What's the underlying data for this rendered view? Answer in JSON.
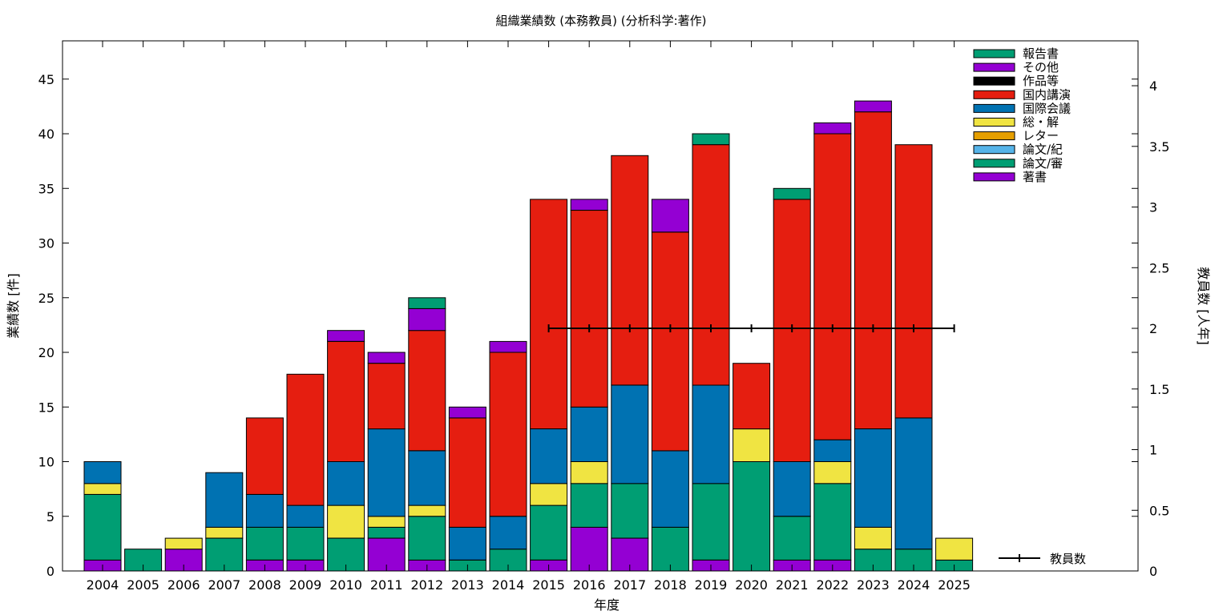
{
  "chart_data": {
    "type": "bar",
    "stacked": true,
    "title": "組織業績数 (本務教員) (分析科学:著作)",
    "xlabel": "年度",
    "ylabel": "業績数 [件]",
    "y2label": "教員数 [人年]",
    "ylim": [
      0,
      48.5
    ],
    "y2lim": [
      0,
      4.37
    ],
    "yticks": [
      0,
      5,
      10,
      15,
      20,
      25,
      30,
      35,
      40,
      45
    ],
    "y2ticks": [
      "0",
      "0.5",
      "1",
      "1.5",
      "2",
      "2.5",
      "3",
      "3.5",
      "4"
    ],
    "legend_position": "top-right",
    "categories": [
      "2004",
      "2005",
      "2006",
      "2007",
      "2008",
      "2009",
      "2010",
      "2011",
      "2012",
      "2013",
      "2014",
      "2015",
      "2016",
      "2017",
      "2018",
      "2019",
      "2020",
      "2021",
      "2022",
      "2023",
      "2024",
      "2025"
    ],
    "series": [
      {
        "name": "著書",
        "color": "#9400d3",
        "values": [
          1,
          0,
          2,
          0,
          1,
          1,
          0,
          3,
          1,
          0,
          0,
          1,
          4,
          3,
          0,
          1,
          0,
          1,
          1,
          0,
          0,
          0
        ]
      },
      {
        "name": "論文/審",
        "color": "#009e73",
        "values": [
          6,
          2,
          0,
          3,
          3,
          3,
          3,
          1,
          4,
          1,
          2,
          5,
          4,
          5,
          4,
          7,
          10,
          4,
          7,
          2,
          2,
          1
        ]
      },
      {
        "name": "論文/紀",
        "color": "#56b4e9",
        "values": [
          0,
          0,
          0,
          0,
          0,
          0,
          0,
          0,
          0,
          0,
          0,
          0,
          0,
          0,
          0,
          0,
          0,
          0,
          0,
          0,
          0,
          0
        ]
      },
      {
        "name": "レター",
        "color": "#e69f00",
        "values": [
          0,
          0,
          0,
          0,
          0,
          0,
          0,
          0,
          0,
          0,
          0,
          0,
          0,
          0,
          0,
          0,
          0,
          0,
          0,
          0,
          0,
          0
        ]
      },
      {
        "name": "総・解",
        "color": "#f0e442",
        "values": [
          1,
          0,
          1,
          1,
          0,
          0,
          3,
          1,
          1,
          0,
          0,
          2,
          2,
          0,
          0,
          0,
          3,
          0,
          2,
          2,
          0,
          2
        ]
      },
      {
        "name": "国際会議",
        "color": "#0072b2",
        "values": [
          2,
          0,
          0,
          5,
          3,
          2,
          4,
          8,
          5,
          3,
          3,
          5,
          5,
          9,
          7,
          9,
          0,
          5,
          2,
          9,
          12,
          0
        ]
      },
      {
        "name": "国内講演",
        "color": "#e51e10",
        "values": [
          0,
          0,
          0,
          0,
          7,
          12,
          11,
          6,
          11,
          10,
          15,
          21,
          18,
          21,
          20,
          22,
          6,
          24,
          28,
          29,
          25,
          0
        ]
      },
      {
        "name": "作品等",
        "color": "#000000",
        "values": [
          0,
          0,
          0,
          0,
          0,
          0,
          0,
          0,
          0,
          0,
          0,
          0,
          0,
          0,
          0,
          0,
          0,
          0,
          0,
          0,
          0,
          0
        ]
      },
      {
        "name": "その他",
        "color": "#9400d3",
        "values": [
          0,
          0,
          0,
          0,
          0,
          0,
          1,
          1,
          2,
          1,
          1,
          0,
          1,
          0,
          3,
          0,
          0,
          0,
          1,
          1,
          0,
          0
        ]
      },
      {
        "name": "報告書",
        "color": "#009e73",
        "values": [
          0,
          0,
          0,
          0,
          0,
          0,
          0,
          0,
          1,
          0,
          0,
          0,
          0,
          0,
          0,
          1,
          0,
          1,
          0,
          0,
          0,
          0
        ]
      }
    ],
    "line_series": {
      "name": "教員数",
      "axis": "y2",
      "categories": [
        "2015",
        "2016",
        "2017",
        "2018",
        "2019",
        "2020",
        "2021",
        "2022",
        "2023",
        "2024",
        "2025"
      ],
      "values": [
        2,
        2,
        2,
        2,
        2,
        2,
        2,
        2,
        2,
        2,
        2
      ]
    }
  }
}
